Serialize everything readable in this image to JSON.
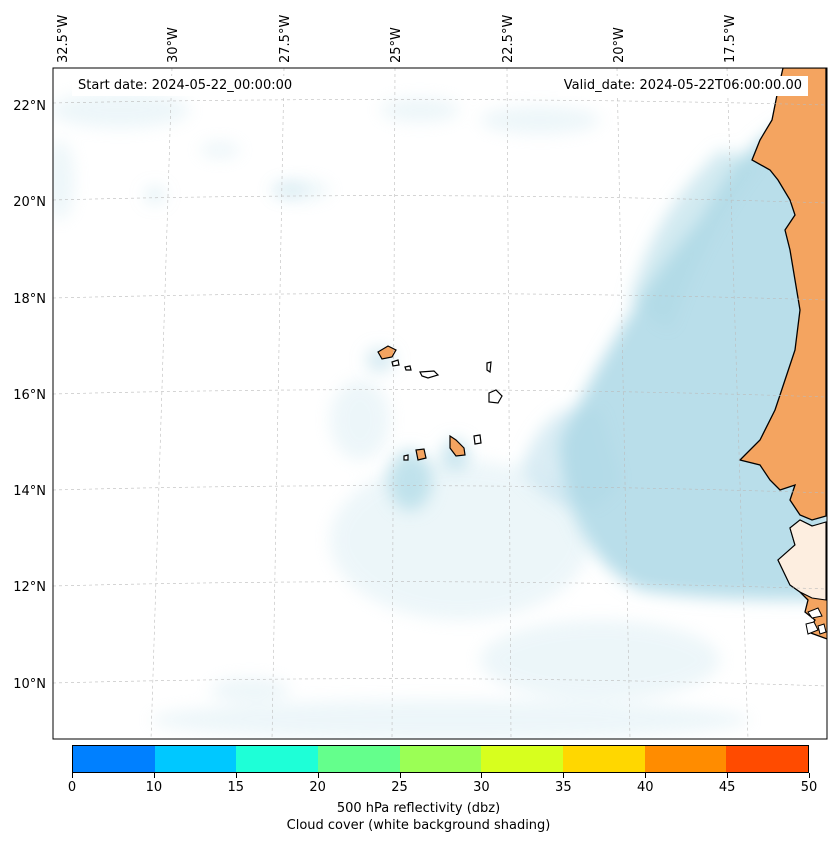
{
  "map": {
    "start_date": "Start date: 2024-05-22_00:00:00",
    "valid_date": "Valid_date: 2024-05-22T06:00:00.00",
    "lon_labels": [
      "32.5°W",
      "30°W",
      "27.5°W",
      "25°W",
      "22.5°W",
      "20°W",
      "17.5°W"
    ],
    "lat_labels": [
      "22°N",
      "20°N",
      "18°N",
      "16°N",
      "14°N",
      "12°N",
      "10°N"
    ],
    "colors": {
      "ocean": "#ffffff",
      "land": "#f4a460",
      "cloud": "#add8e6",
      "gridline": "#bbbbbb",
      "coastline": "#000000"
    }
  },
  "colorbar": {
    "ticks": [
      "0",
      "10",
      "15",
      "20",
      "25",
      "30",
      "35",
      "40",
      "45",
      "50"
    ],
    "colors": [
      "#0080ff",
      "#00c8ff",
      "#1effd7",
      "#64ff8c",
      "#9bff55",
      "#d7ff1e",
      "#ffd700",
      "#ff8c00",
      "#ff4b00"
    ],
    "label_line1": "500 hPa reflectivity (dbz)",
    "label_line2": "Cloud cover (white background shading)"
  }
}
